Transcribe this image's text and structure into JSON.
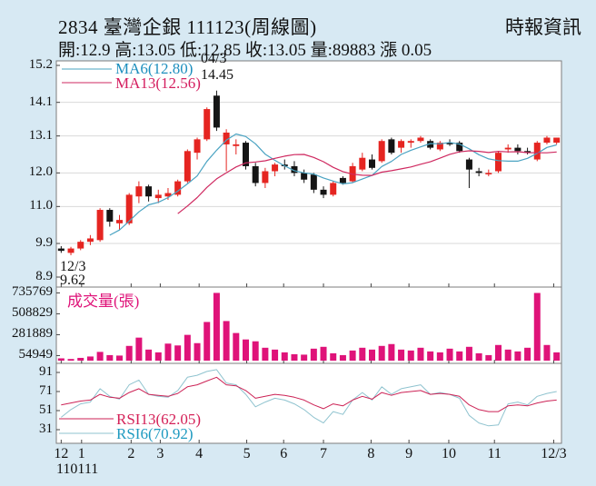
{
  "header": {
    "stock_line": "2834  臺灣企銀 111123(周線圖)",
    "provider": "時報資訊",
    "quote_line": "開:12.9 高:13.05 低:12.85 收:13.05 量:89883 漲 0.05"
  },
  "overlays": {
    "ma6_label": "MA6(12.80)",
    "ma13_label": "MA13(12.56)",
    "volume_title": "成交量(張)",
    "rsi13_label": "RSI13(62.05)",
    "rsi6_label": "RSI6(70.92)",
    "peak_date": "04/3",
    "peak_price": "14.45",
    "start_date": "12/3",
    "start_price": "9.62",
    "first_date": "110111"
  },
  "colors": {
    "background": "#d7e9f3",
    "panel_bg": "#ffffff",
    "panel_border": "#7d7d7d",
    "grid": "#d9d9d9",
    "candle_up": "#e52521",
    "candle_down": "#151515",
    "volume_bar": "#df1379",
    "volume_title": "#df1379",
    "ma6_line": "#4aa3c2",
    "ma6_text": "#1e8fbe",
    "ma13_line": "#cf2960",
    "ma13_text": "#d41e5f",
    "rsi6_line": "#8fc3cf",
    "rsi6_text": "#1e9ac0",
    "rsi13_line": "#cc2255",
    "rsi13_text": "#d42057"
  },
  "chart_data": {
    "type": "candlestick",
    "title": "2834 臺灣企銀 週線圖",
    "panels": [
      "price+MA6+MA13",
      "volume",
      "RSI6+RSI13"
    ],
    "price_axis": [
      {
        "label": "15.2",
        "value": 15.2
      },
      {
        "label": "14.1",
        "value": 14.1
      },
      {
        "label": "13.1",
        "value": 13.1
      },
      {
        "label": "12.0",
        "value": 12.0
      },
      {
        "label": "11.0",
        "value": 11.0
      },
      {
        "label": "9.9",
        "value": 9.9
      },
      {
        "label": "8.9",
        "value": 8.9
      }
    ],
    "volume_axis": [
      {
        "label": "735769",
        "value": 735769
      },
      {
        "label": "508829",
        "value": 508829
      },
      {
        "label": "281889",
        "value": 281889
      },
      {
        "label": "54949",
        "value": 54949
      }
    ],
    "rsi_axis": [
      {
        "label": "91",
        "value": 91
      },
      {
        "label": "71",
        "value": 71
      },
      {
        "label": "51",
        "value": 51
      },
      {
        "label": "31",
        "value": 31
      }
    ],
    "months": [
      {
        "label": "12",
        "week": 0
      },
      {
        "label": "1",
        "week": 2.1
      },
      {
        "label": "2",
        "week": 7.2
      },
      {
        "label": "3",
        "week": 10.2
      },
      {
        "label": "4",
        "week": 14.2
      },
      {
        "label": "5",
        "week": 19.1
      },
      {
        "label": "6",
        "week": 22.9
      },
      {
        "label": "7",
        "week": 27.0
      },
      {
        "label": "8",
        "week": 31.9
      },
      {
        "label": "9",
        "week": 35.8
      },
      {
        "label": "10",
        "week": 39.9
      },
      {
        "label": "11",
        "week": 44.6
      },
      {
        "label": "12/3",
        "week": 50.7
      }
    ],
    "candles": [
      [
        9.75,
        9.82,
        9.62,
        9.68
      ],
      [
        9.62,
        9.8,
        9.55,
        9.75
      ],
      [
        9.75,
        10.0,
        9.7,
        9.95
      ],
      [
        9.95,
        10.15,
        9.85,
        10.05
      ],
      [
        10.0,
        10.95,
        9.95,
        10.9
      ],
      [
        10.9,
        10.95,
        10.4,
        10.55
      ],
      [
        10.5,
        10.75,
        10.3,
        10.6
      ],
      [
        10.5,
        11.4,
        10.45,
        11.35
      ],
      [
        11.3,
        11.75,
        11.1,
        11.6
      ],
      [
        11.6,
        11.65,
        11.15,
        11.3
      ],
      [
        11.25,
        11.5,
        11.1,
        11.35
      ],
      [
        11.3,
        11.55,
        11.2,
        11.4
      ],
      [
        11.35,
        11.8,
        11.3,
        11.75
      ],
      [
        11.75,
        12.7,
        11.7,
        12.65
      ],
      [
        12.6,
        13.05,
        12.4,
        13.0
      ],
      [
        13.0,
        13.95,
        12.95,
        13.9
      ],
      [
        14.3,
        14.45,
        13.25,
        13.35
      ],
      [
        12.85,
        13.3,
        12.05,
        13.2
      ],
      [
        12.8,
        13.0,
        12.55,
        12.85
      ],
      [
        12.9,
        12.95,
        12.1,
        12.2
      ],
      [
        12.2,
        12.3,
        11.6,
        11.7
      ],
      [
        11.7,
        12.15,
        11.55,
        12.05
      ],
      [
        12.05,
        12.3,
        11.9,
        12.25
      ],
      [
        12.25,
        12.4,
        12.1,
        12.2
      ],
      [
        12.2,
        12.35,
        11.9,
        12.0
      ],
      [
        12.0,
        12.1,
        11.7,
        11.8
      ],
      [
        11.95,
        12.0,
        11.4,
        11.5
      ],
      [
        11.5,
        11.6,
        11.25,
        11.35
      ],
      [
        11.35,
        11.75,
        11.3,
        11.7
      ],
      [
        11.85,
        11.9,
        11.65,
        11.7
      ],
      [
        11.75,
        12.3,
        11.7,
        12.2
      ],
      [
        12.1,
        12.6,
        12.05,
        12.45
      ],
      [
        12.4,
        12.55,
        12.1,
        12.15
      ],
      [
        12.35,
        13.0,
        12.3,
        12.95
      ],
      [
        13.0,
        13.05,
        12.55,
        12.6
      ],
      [
        12.75,
        13.0,
        12.6,
        12.95
      ],
      [
        12.9,
        13.0,
        12.75,
        12.95
      ],
      [
        12.95,
        13.1,
        12.9,
        13.05
      ],
      [
        12.95,
        13.0,
        12.7,
        12.75
      ],
      [
        12.7,
        12.95,
        12.65,
        12.9
      ],
      [
        12.9,
        13.0,
        12.8,
        12.85
      ],
      [
        12.9,
        12.95,
        12.6,
        12.65
      ],
      [
        12.4,
        12.45,
        11.55,
        12.1
      ],
      [
        12.05,
        12.15,
        11.9,
        12.0
      ],
      [
        12.0,
        12.1,
        11.9,
        12.0
      ],
      [
        12.05,
        12.65,
        12.0,
        12.6
      ],
      [
        12.7,
        12.85,
        12.6,
        12.75
      ],
      [
        12.75,
        12.85,
        12.55,
        12.65
      ],
      [
        12.65,
        12.75,
        12.55,
        12.6
      ],
      [
        12.4,
        12.95,
        12.35,
        12.9
      ],
      [
        12.9,
        13.1,
        12.85,
        13.05
      ],
      [
        12.9,
        13.05,
        12.85,
        13.05
      ]
    ],
    "volumes": [
      25000,
      18000,
      30000,
      45000,
      95000,
      60000,
      55000,
      160000,
      250000,
      120000,
      90000,
      185000,
      165000,
      280000,
      190000,
      420000,
      735769,
      430000,
      300000,
      230000,
      210000,
      140000,
      120000,
      90000,
      70000,
      65000,
      130000,
      150000,
      80000,
      60000,
      110000,
      140000,
      120000,
      160000,
      180000,
      120000,
      110000,
      140000,
      100000,
      90000,
      130000,
      100000,
      150000,
      80000,
      60000,
      170000,
      120000,
      100000,
      140000,
      735000,
      170000,
      89883
    ],
    "rsi6": [
      44,
      52,
      58,
      60,
      74,
      66,
      63,
      78,
      83,
      68,
      66,
      65,
      72,
      86,
      88,
      92,
      94,
      80,
      78,
      68,
      55,
      60,
      64,
      62,
      58,
      52,
      44,
      38,
      50,
      47,
      62,
      70,
      62,
      76,
      68,
      74,
      76,
      78,
      68,
      70,
      68,
      64,
      46,
      38,
      35,
      36,
      58,
      60,
      57,
      66,
      69,
      71
    ],
    "rsi13": [
      57,
      59,
      61,
      62,
      68,
      65,
      64,
      70,
      74,
      68,
      67,
      66,
      69,
      76,
      78,
      82,
      86,
      78,
      77,
      72,
      64,
      66,
      68,
      67,
      65,
      62,
      57,
      53,
      58,
      56,
      62,
      66,
      63,
      70,
      67,
      70,
      71,
      72,
      68,
      69,
      68,
      66,
      57,
      52,
      50,
      50,
      56,
      57,
      56,
      59,
      61,
      62
    ],
    "ma6_current": 12.8,
    "ma13_current": 12.56,
    "rsi6_current": 70.92,
    "rsi13_current": 62.05
  }
}
